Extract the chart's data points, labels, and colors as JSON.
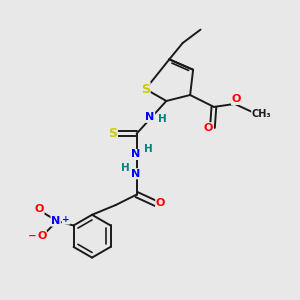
{
  "bg_color": "#e8e8e8",
  "bond_color": "#1a1a1a",
  "bond_lw": 1.4,
  "atom_colors": {
    "S": "#cccc00",
    "N": "#0000ff",
    "O": "#ff0000",
    "C": "#1a1a1a",
    "H": "#008080"
  },
  "fs": 7.5
}
